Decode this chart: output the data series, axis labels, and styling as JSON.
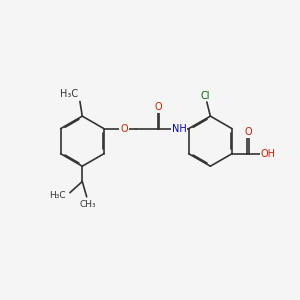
{
  "bg_color": "#f5f5f5",
  "bond_color": "#333333",
  "bond_width": 1.2,
  "dbo": 0.035,
  "text_black": "#333333",
  "text_red": "#cc2200",
  "text_blue": "#0000bb",
  "text_green": "#006600",
  "fs": 7.0,
  "fs_small": 6.5,
  "fig_w": 3.0,
  "fig_h": 3.0,
  "dpi": 100,
  "xlim": [
    0,
    10
  ],
  "ylim": [
    0,
    10
  ],
  "r_ring": 0.85
}
